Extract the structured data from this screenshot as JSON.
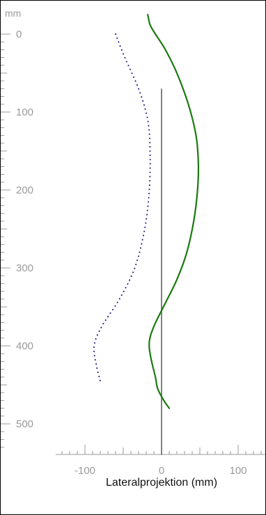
{
  "chart_data": {
    "type": "line",
    "title": "",
    "xlabel": "Lateralprojektion (mm)",
    "ylabel": "mm",
    "xlim": [
      -130,
      130
    ],
    "ylim": [
      0,
      540
    ],
    "x_ticks": [
      -100,
      0,
      100
    ],
    "y_ticks": [
      0,
      100,
      200,
      300,
      400,
      500
    ],
    "reference_line": {
      "x": 0,
      "y_from": 70,
      "y_to": 540,
      "color": "#808080"
    },
    "series": [
      {
        "style": "solid",
        "color": "#1a7a0f",
        "points": [
          [
            -18,
            -25
          ],
          [
            -15,
            -12
          ],
          [
            -8,
            0
          ],
          [
            5,
            20
          ],
          [
            20,
            50
          ],
          [
            35,
            90
          ],
          [
            45,
            130
          ],
          [
            48,
            165
          ],
          [
            47,
            200
          ],
          [
            42,
            240
          ],
          [
            33,
            280
          ],
          [
            20,
            315
          ],
          [
            5,
            345
          ],
          [
            -10,
            375
          ],
          [
            -16,
            395
          ],
          [
            -14,
            415
          ],
          [
            -8,
            440
          ],
          [
            -5,
            455
          ],
          [
            3,
            470
          ],
          [
            10,
            480
          ]
        ]
      },
      {
        "style": "dotted",
        "color": "#1a1a80",
        "points": [
          [
            -60,
            0
          ],
          [
            -48,
            30
          ],
          [
            -30,
            70
          ],
          [
            -18,
            110
          ],
          [
            -15,
            150
          ],
          [
            -16,
            200
          ],
          [
            -22,
            250
          ],
          [
            -35,
            300
          ],
          [
            -55,
            340
          ],
          [
            -78,
            375
          ],
          [
            -88,
            400
          ],
          [
            -85,
            425
          ],
          [
            -80,
            445
          ]
        ]
      }
    ]
  }
}
